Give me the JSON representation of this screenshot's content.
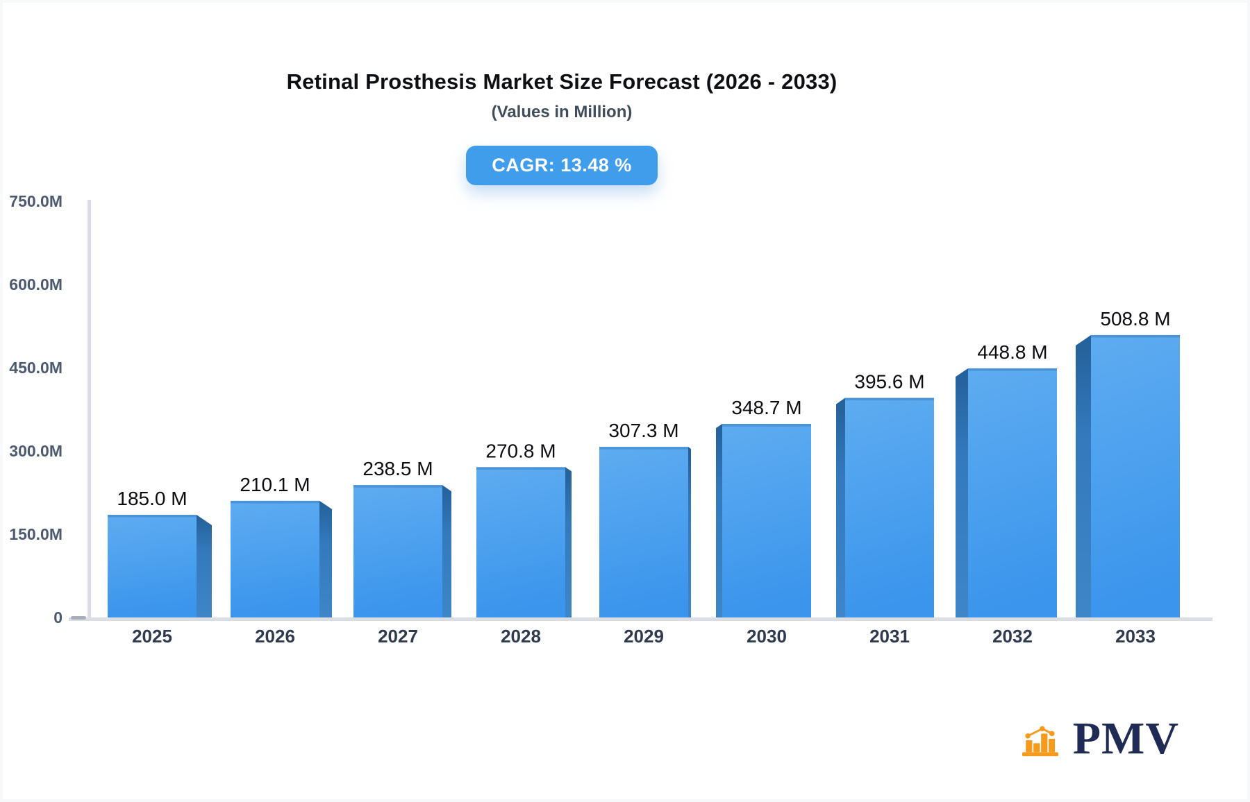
{
  "header": {
    "title": "Retinal Prosthesis Market Size Forecast (2026 - 2033)",
    "subtitle": "(Values in Million)",
    "cagr_badge": "CAGR: 13.48 %"
  },
  "chart_data": {
    "type": "bar",
    "style": "3d-perspective-bars",
    "title": "Retinal Prosthesis Market Size Forecast (2026 - 2033)",
    "subtitle": "(Values in Million)",
    "cagr_percent": 13.48,
    "categories": [
      "2025",
      "2026",
      "2027",
      "2028",
      "2029",
      "2030",
      "2031",
      "2032",
      "2033"
    ],
    "values": [
      185.0,
      210.1,
      238.5,
      270.8,
      307.3,
      348.7,
      395.6,
      448.8,
      508.8
    ],
    "value_labels": [
      "185.0 M",
      "210.1 M",
      "238.5 M",
      "270.8 M",
      "307.3 M",
      "348.7 M",
      "395.6 M",
      "448.8 M",
      "508.8 M"
    ],
    "ylim": [
      0,
      750
    ],
    "yticks": [
      {
        "value": 0,
        "label": "0"
      },
      {
        "value": 150,
        "label": "150.0M"
      },
      {
        "value": 300,
        "label": "300.0M"
      },
      {
        "value": 450,
        "label": "450.0M"
      },
      {
        "value": 600,
        "label": "600.0M"
      },
      {
        "value": 750,
        "label": "750.0M"
      }
    ],
    "xlabel": "",
    "ylabel": "",
    "grid": false,
    "legend": false
  },
  "logo": {
    "text": "PMV",
    "icon": "bar-chart-logo-icon"
  },
  "colors": {
    "bar_face_top": "#5EACF1",
    "bar_face_bottom": "#3B95EC",
    "bar_face_topline": "#4B92D6",
    "bar_side_top": "#245F98",
    "bar_side_bottom": "#3E86C8",
    "axis_line": "#DADDE3",
    "zero_tick": "#A9AFB9",
    "tick_text": "#4D5970",
    "year_text": "#2F3A4F",
    "value_text": "#0C0D10",
    "badge_bg": "#3F9DEB",
    "badge_text": "#FFFFFF",
    "logo_orange": "#F49B1E",
    "logo_navy": "#1F2A55",
    "background": "#FFFFFF"
  }
}
